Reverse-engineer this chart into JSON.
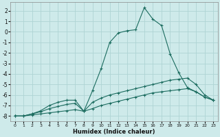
{
  "xlabel": "Humidex (Indice chaleur)",
  "xlim": [
    -0.5,
    23.5
  ],
  "ylim": [
    -8.5,
    2.8
  ],
  "yticks": [
    2,
    1,
    0,
    -1,
    -2,
    -3,
    -4,
    -5,
    -6,
    -7,
    -8
  ],
  "xticks": [
    0,
    1,
    2,
    3,
    4,
    5,
    6,
    7,
    8,
    9,
    10,
    11,
    12,
    13,
    14,
    15,
    16,
    17,
    18,
    19,
    20,
    21,
    22,
    23
  ],
  "background_color": "#ceeaea",
  "grid_color": "#aed4d4",
  "line_color": "#1a6b5e",
  "series": [
    {
      "x": [
        0,
        1,
        2,
        3,
        4,
        5,
        6,
        7,
        8,
        9,
        10,
        11,
        12,
        13,
        14,
        15,
        16,
        17,
        18,
        19,
        20,
        21,
        22,
        23
      ],
      "y": [
        -8.0,
        -8.0,
        -7.9,
        -7.8,
        -7.7,
        -7.6,
        -7.5,
        -7.4,
        -7.55,
        -7.3,
        -7.0,
        -6.8,
        -6.6,
        -6.4,
        -6.2,
        -6.0,
        -5.8,
        -5.7,
        -5.6,
        -5.5,
        -5.4,
        -5.7,
        -6.2,
        -6.5
      ]
    },
    {
      "x": [
        0,
        1,
        2,
        3,
        4,
        5,
        6,
        7,
        8,
        9,
        10,
        11,
        12,
        13,
        14,
        15,
        16,
        17,
        18,
        19,
        20,
        21,
        22,
        23
      ],
      "y": [
        -8.0,
        -8.0,
        -7.8,
        -7.6,
        -7.3,
        -7.1,
        -6.9,
        -6.8,
        -7.55,
        -6.7,
        -6.3,
        -6.0,
        -5.8,
        -5.6,
        -5.4,
        -5.2,
        -5.0,
        -4.8,
        -4.6,
        -4.5,
        -4.4,
        -5.0,
        -6.0,
        -6.5
      ]
    },
    {
      "x": [
        0,
        1,
        2,
        3,
        4,
        5,
        6,
        7,
        8,
        9,
        10,
        11,
        12,
        13,
        14,
        15,
        16,
        17,
        18,
        19,
        20,
        21,
        22,
        23
      ],
      "y": [
        -8.0,
        -8.0,
        -7.8,
        -7.5,
        -7.0,
        -6.7,
        -6.5,
        -6.5,
        -7.55,
        -5.6,
        -3.5,
        -1.0,
        -0.1,
        0.1,
        0.2,
        2.3,
        1.2,
        0.6,
        -2.1,
        -3.9,
        -5.3,
        -5.7,
        -6.2,
        -6.5
      ]
    }
  ]
}
